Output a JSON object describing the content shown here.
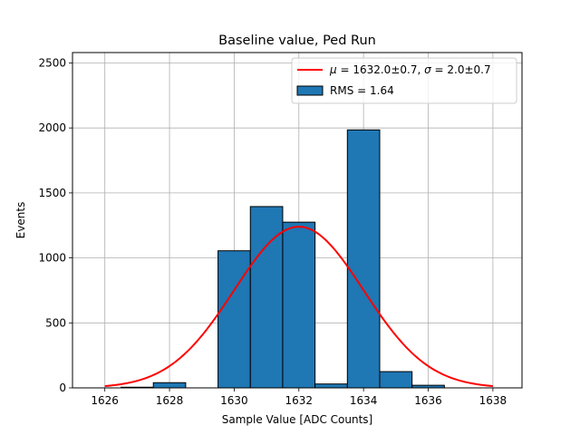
{
  "chart_data": {
    "type": "bar",
    "title": "Baseline value, Ped Run",
    "xlabel": "Sample Value [ADC Counts]",
    "ylabel": "Events",
    "xlim": [
      1625.0,
      1638.9
    ],
    "ylim": [
      0,
      2580
    ],
    "grid": true,
    "legend_position": "top-right",
    "x_ticks": [
      1626,
      1628,
      1630,
      1632,
      1634,
      1636,
      1638
    ],
    "y_ticks": [
      0,
      500,
      1000,
      1500,
      2000,
      2500
    ],
    "histogram": {
      "name": "RMS = 1.64",
      "color": "#1f77b4",
      "edge_color": "#000000",
      "bins": [
        {
          "left": 1625.5,
          "right": 1626.5,
          "count": 0
        },
        {
          "left": 1626.5,
          "right": 1627.5,
          "count": 5
        },
        {
          "left": 1627.5,
          "right": 1628.5,
          "count": 40
        },
        {
          "left": 1628.5,
          "right": 1629.5,
          "count": 0
        },
        {
          "left": 1629.5,
          "right": 1630.5,
          "count": 1055
        },
        {
          "left": 1630.5,
          "right": 1631.5,
          "count": 1395
        },
        {
          "left": 1631.5,
          "right": 1632.5,
          "count": 1275
        },
        {
          "left": 1632.5,
          "right": 1633.5,
          "count": 30
        },
        {
          "left": 1633.5,
          "right": 1634.5,
          "count": 1985
        },
        {
          "left": 1634.5,
          "right": 1635.5,
          "count": 125
        },
        {
          "left": 1635.5,
          "right": 1636.5,
          "count": 20
        }
      ]
    },
    "fit": {
      "name": "$\\mu = 1632.0 \\pm 0.7$, $\\sigma = 2.0 \\pm 0.7$",
      "color": "#ff0000",
      "mu": 1632.0,
      "sigma": 2.0,
      "amplitude": 1240,
      "x_range": [
        1626,
        1638
      ]
    }
  },
  "legend": {
    "fit_mu_symbol": "μ",
    "fit_mu_text": " = 1632.0±0.7, ",
    "fit_sigma_symbol": "σ",
    "fit_sigma_text": " = 2.0±0.7",
    "hist_label": "RMS = 1.64"
  }
}
